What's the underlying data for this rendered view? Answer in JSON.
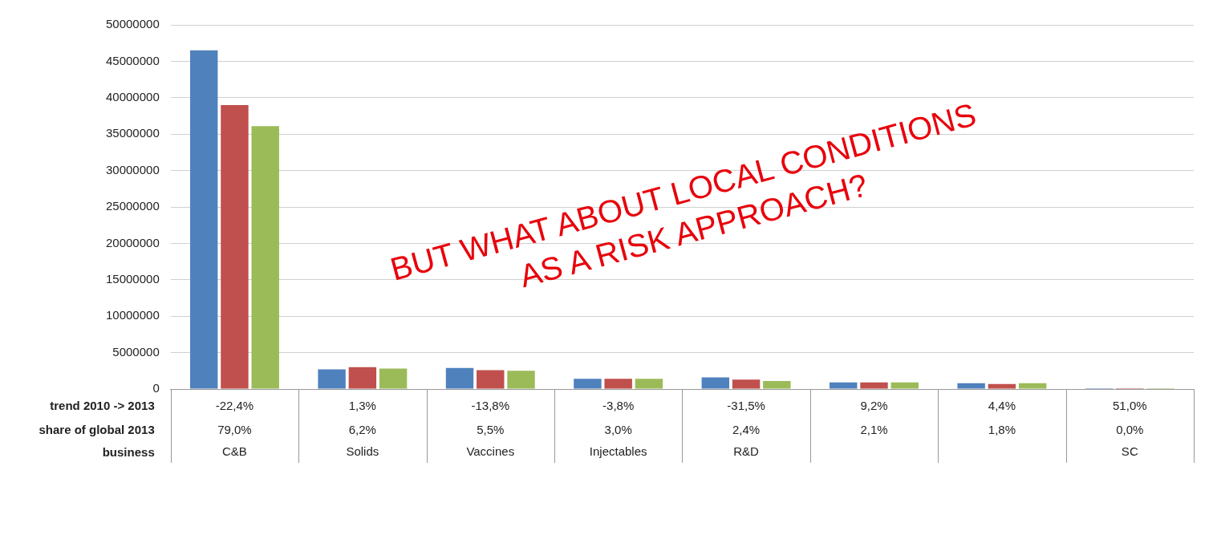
{
  "chart_data": {
    "type": "bar",
    "categories": [
      "C&B",
      "Solids",
      "Vaccines",
      "Injectables",
      "R&D",
      null,
      null,
      "SC"
    ],
    "series": [
      {
        "color": "#4f81bd",
        "values": [
          46500000,
          2700000,
          2900000,
          1400000,
          1600000,
          900000,
          800000,
          100000
        ]
      },
      {
        "color": "#c0504d",
        "values": [
          39000000,
          3000000,
          2600000,
          1400000,
          1300000,
          900000,
          700000,
          100000
        ]
      },
      {
        "color": "#9bbb59",
        "values": [
          36100000,
          2800000,
          2500000,
          1400000,
          1100000,
          900000,
          800000,
          100000
        ]
      }
    ],
    "ylim": [
      0,
      50000000
    ],
    "yticks": [
      0,
      5000000,
      10000000,
      15000000,
      20000000,
      25000000,
      30000000,
      35000000,
      40000000,
      45000000,
      50000000
    ],
    "grid": "y",
    "legend": false,
    "annotations": [
      "trend 2010 -> 2013",
      "-22,4%",
      "1,3%",
      "-13,8%",
      "-3,8%",
      "-31,5%",
      "9,2%",
      "4,4%",
      "51,0%",
      "share of global 2013",
      "79,0%",
      "6,2%",
      "5,5%",
      "3,0%",
      "2,4%",
      "2,1%",
      "1,8%",
      "0,0%",
      "business",
      "BUT WHAT ABOUT LOCAL CONDITIONS\nAS A RISK APPROACH?"
    ]
  }
}
